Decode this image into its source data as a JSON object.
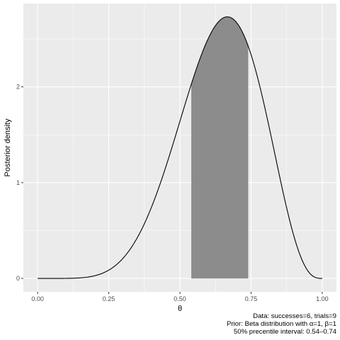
{
  "chart_data": {
    "type": "area",
    "xlabel": "θ",
    "ylabel": "Posterior density",
    "xlim": [
      -0.05,
      1.05
    ],
    "ylim": [
      -0.14,
      2.87
    ],
    "x_ticks": [
      0.0,
      0.25,
      0.5,
      0.75,
      1.0
    ],
    "x_tick_labels": [
      "0.00",
      "0.25",
      "0.50",
      "0.75",
      "1.00"
    ],
    "y_ticks": [
      0,
      1,
      2
    ],
    "y_tick_labels": [
      "0",
      "1",
      "2"
    ],
    "distribution": {
      "family": "Beta",
      "alpha": 7,
      "beta": 4
    },
    "shaded_interval": [
      0.54,
      0.74
    ],
    "grid": true,
    "legend": "none",
    "colors": {
      "panel_background": "#ebebeb",
      "grid_major": "#ffffff",
      "curve": "#000000",
      "shaded_area": "#8c8c8c"
    }
  },
  "caption": {
    "line1": "Data: successes=6, trials=9",
    "line2": "Prior: Beta distribution with α=1, β=1",
    "line3": "50% precentile interval: 0.54–0.74"
  }
}
